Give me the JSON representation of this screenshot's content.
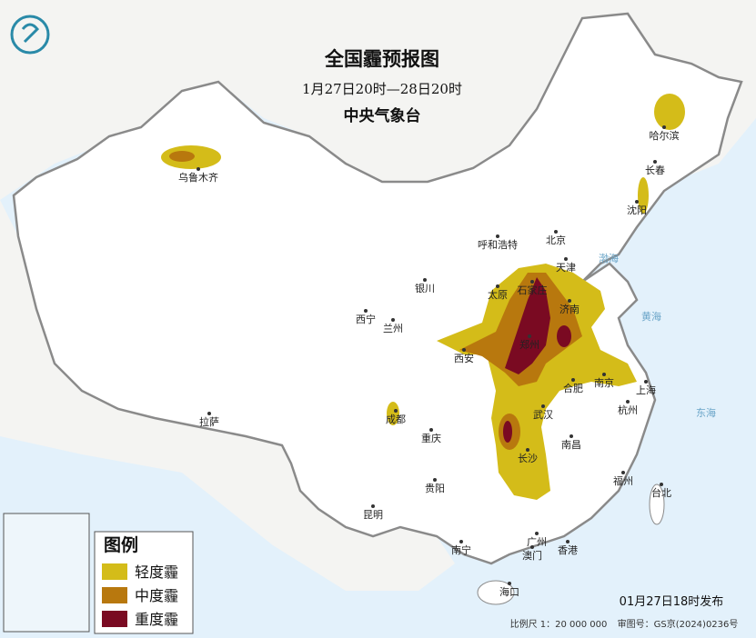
{
  "header": {
    "title": "全国霾预报图",
    "subtitle": "1月27日20时—28日20时",
    "issuer": "中央气象台"
  },
  "legend": {
    "title": "图例",
    "items": [
      {
        "label": "轻度霾",
        "color": "#d4bc19"
      },
      {
        "label": "中度霾",
        "color": "#b8780e"
      },
      {
        "label": "重度霾",
        "color": "#7a0a22"
      }
    ]
  },
  "cities": [
    "乌鲁木齐",
    "哈尔滨",
    "长春",
    "沈阳",
    "北京",
    "天津",
    "呼和浩特",
    "石家庄",
    "太原",
    "银川",
    "济南",
    "西宁",
    "兰州",
    "郑州",
    "西安",
    "南京",
    "合肥",
    "上海",
    "成都",
    "武汉",
    "杭州",
    "拉萨",
    "重庆",
    "长沙",
    "南昌",
    "贵阳",
    "福州",
    "台北",
    "昆明",
    "南宁",
    "广州",
    "澳门",
    "香港",
    "海口"
  ],
  "seas": [
    "渤海",
    "黄海",
    "东海"
  ],
  "footer": {
    "issued": "01月27日18时发布",
    "scale": "比例尺 1：20 000 000",
    "approval": "审图号：GS京(2024)0236号"
  }
}
